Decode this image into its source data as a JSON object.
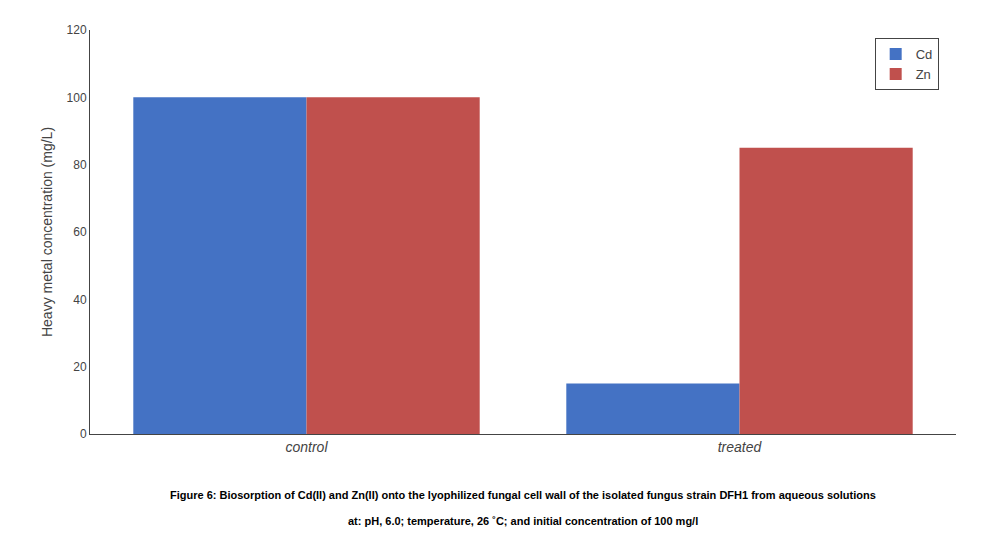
{
  "chart_data": {
    "type": "bar",
    "categories": [
      "control",
      "treated"
    ],
    "series": [
      {
        "name": "Cd",
        "color": "#4472C4",
        "values": [
          100,
          15
        ]
      },
      {
        "name": "Zn",
        "color": "#C0504D",
        "values": [
          100,
          85
        ]
      }
    ],
    "ylabel": "Heavy metal concentration (mg/L)",
    "ylim": [
      0,
      120
    ],
    "yticks": [
      0,
      20,
      40,
      60,
      80,
      100,
      120
    ],
    "grid": false,
    "legend": "upper right",
    "annotations": [
      "Figure 6: Biosorption of Cd(II) and Zn(II) onto the lyophilized fungal cell wall of the isolated fungus strain DFH1 from aqueous solutions",
      "at: pH, 6.0; temperature, 26 ˚C; and initial concentration of 100 mg/l"
    ]
  }
}
